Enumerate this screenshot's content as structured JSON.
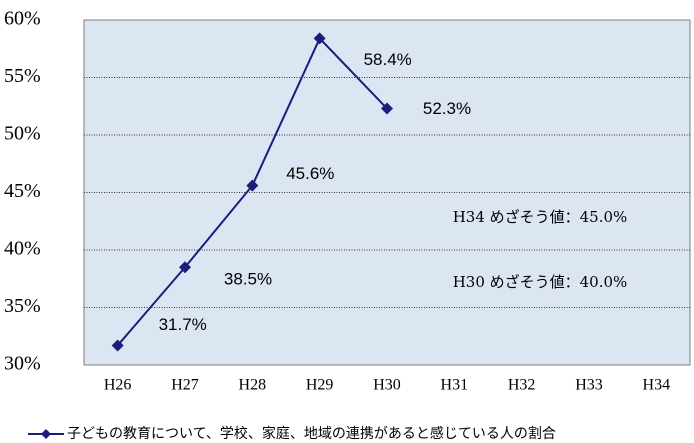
{
  "chart_data": {
    "type": "line",
    "categories": [
      "H26",
      "H27",
      "H28",
      "H29",
      "H30",
      "H31",
      "H32",
      "H33",
      "H34"
    ],
    "series": [
      {
        "name": "子どもの教育について、学校、家庭、地域の連携があると感じている人の割合",
        "color": "#1c1c7c",
        "values": [
          31.7,
          38.5,
          45.6,
          58.4,
          52.3,
          null,
          null,
          null,
          null
        ],
        "value_labels": [
          "31.7%",
          "38.5%",
          "45.6%",
          "58.4%",
          "52.3%",
          null,
          null,
          null,
          null
        ]
      }
    ],
    "ylim": [
      30,
      60
    ],
    "yticks": [
      {
        "value": 30,
        "label": "30%"
      },
      {
        "value": 35,
        "label": "35%"
      },
      {
        "value": 40,
        "label": "40%"
      },
      {
        "value": 45,
        "label": "45%"
      },
      {
        "value": 50,
        "label": "50%"
      },
      {
        "value": 55,
        "label": "55%"
      },
      {
        "value": 60,
        "label": "60%"
      }
    ],
    "grid": true,
    "annotations": [
      "H34 めざそう値：45.0%",
      "H30 めざそう値：40.0%"
    ],
    "legend": "bottom"
  }
}
